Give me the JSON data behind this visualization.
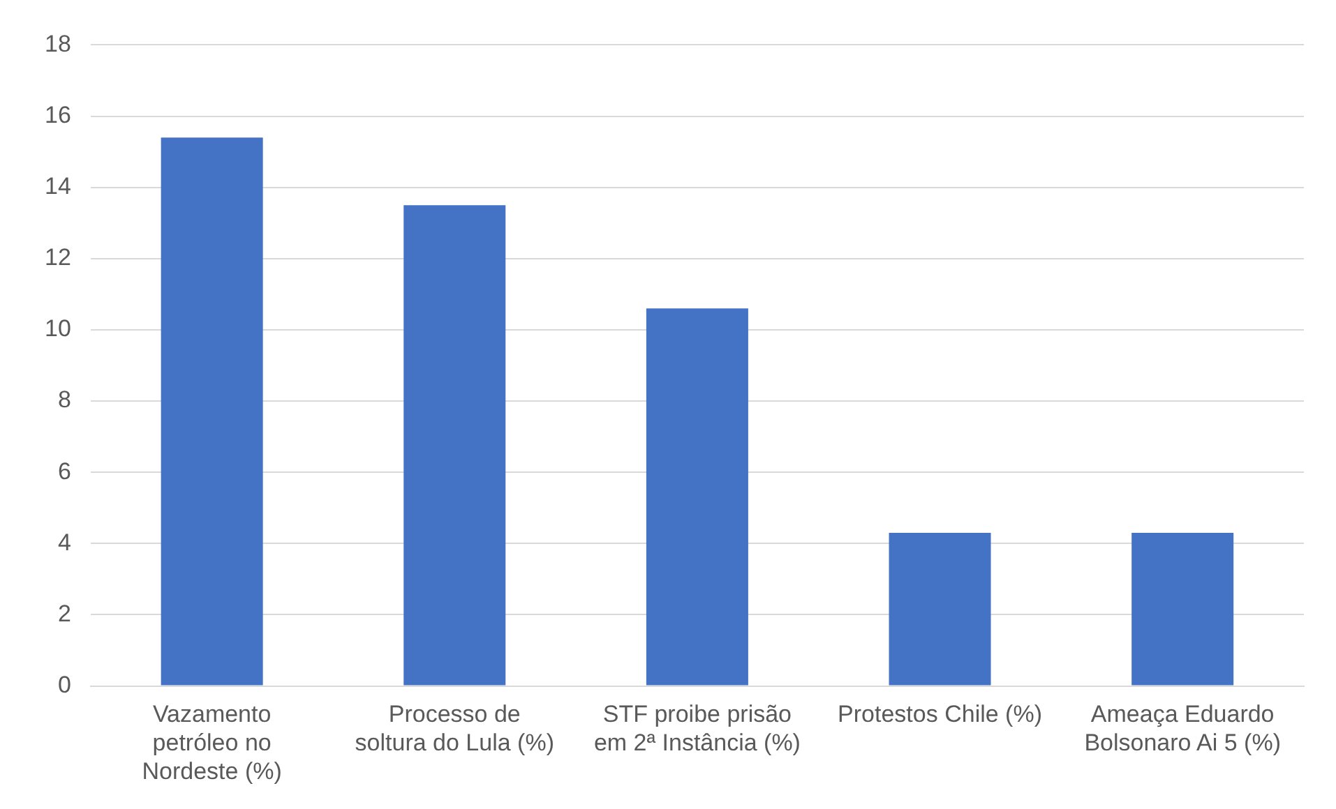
{
  "chart_data": {
    "type": "bar",
    "categories": [
      "Vazamento petróleo no Nordeste (%)",
      "Processo de soltura do Lula (%)",
      "STF proibe prisão em 2ª Instância (%)",
      "Protestos Chile (%)",
      "Ameaça Eduardo Bolsonaro Ai 5 (%)"
    ],
    "values": [
      15.4,
      13.5,
      10.6,
      4.3,
      4.3
    ],
    "color": "#4472c4",
    "ylim": [
      0,
      18
    ],
    "yticks": [
      0,
      2,
      4,
      6,
      8,
      10,
      12,
      14,
      16,
      18
    ],
    "grid": "y"
  }
}
